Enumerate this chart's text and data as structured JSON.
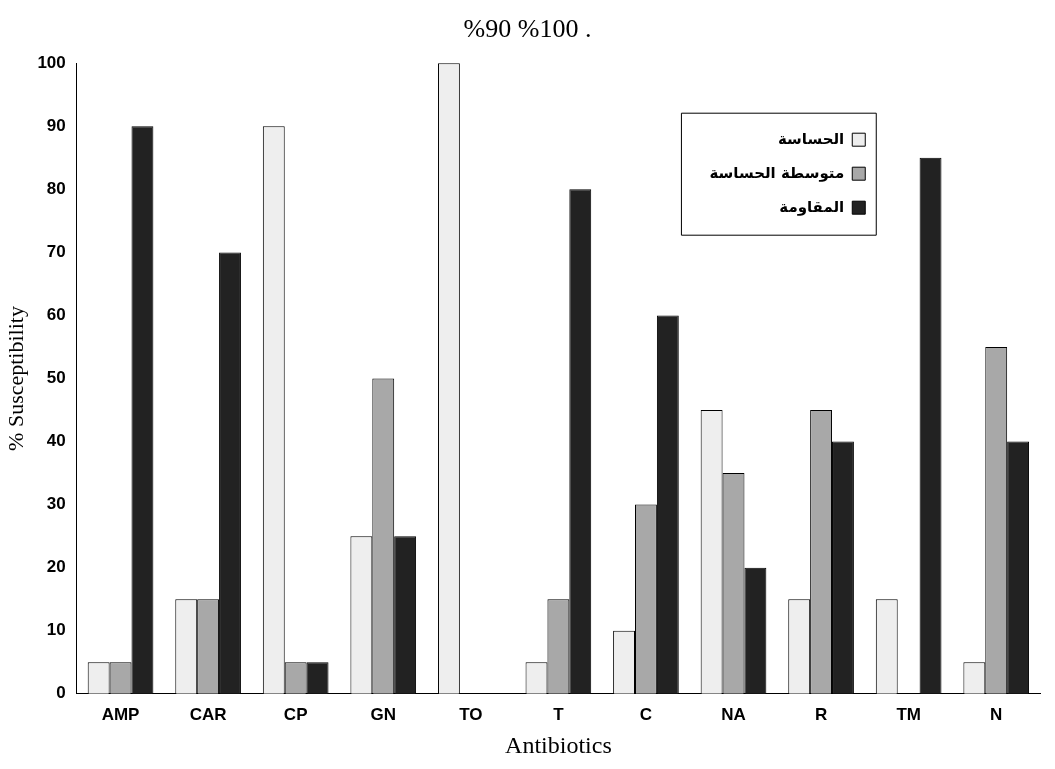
{
  "chart_data": {
    "type": "bar",
    "xlabel": "Antibiotics",
    "ylabel": "% Susceptibility",
    "annotations": [
      ".    %100  %90"
    ],
    "categories": [
      "AMP",
      "CAR",
      "CP",
      "GN",
      "TO",
      "T",
      "C",
      "NA",
      "R",
      "TM",
      "N"
    ],
    "series": [
      {
        "name": "الحساسة",
        "color": "#eeeeee",
        "values": [
          5,
          15,
          90,
          25,
          100,
          5,
          10,
          45,
          15,
          15,
          5
        ]
      },
      {
        "name": "متوسطة الحساسة",
        "color": "#a8a8a8",
        "values": [
          5,
          15,
          5,
          50,
          0,
          15,
          30,
          35,
          45,
          0,
          55
        ]
      },
      {
        "name": "المقاومة",
        "color": "#222222",
        "values": [
          90,
          70,
          5,
          25,
          0,
          80,
          60,
          20,
          40,
          85,
          40
        ]
      }
    ],
    "ylim": [
      0,
      100
    ],
    "yticks": [
      0,
      10,
      20,
      30,
      40,
      50,
      60,
      70,
      80,
      90,
      100
    ],
    "grid": false,
    "legend": "top right"
  }
}
